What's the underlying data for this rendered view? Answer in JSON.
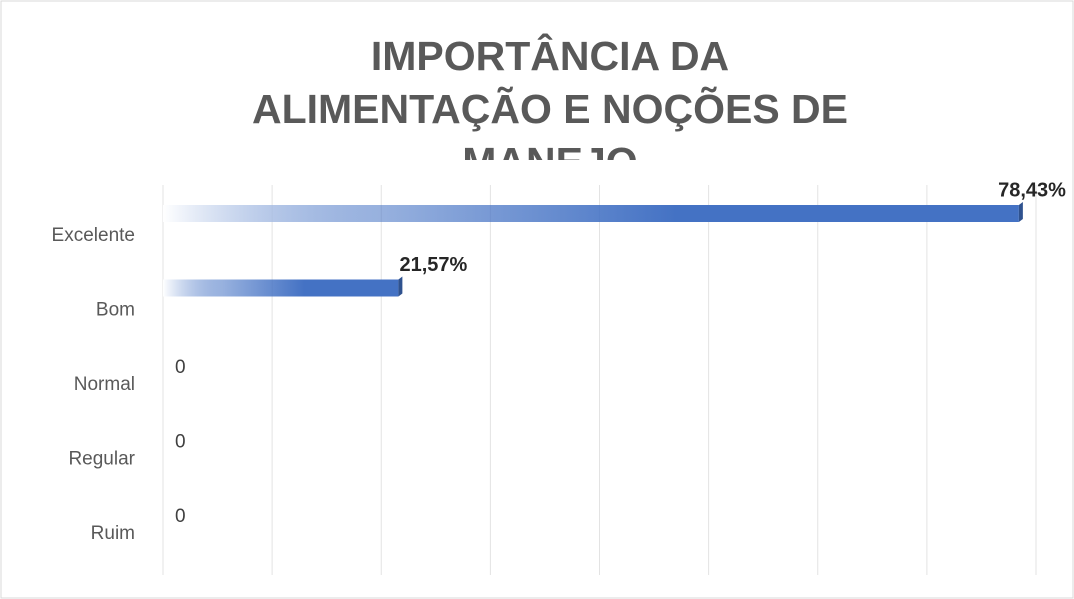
{
  "chart_data": {
    "type": "hbar",
    "title": "IMPORTÂNCIA DA ALIMENTAÇÃO E NOÇÕES DE MANEJO",
    "categories": [
      "Excelente",
      "Bom",
      "Normal",
      "Regular",
      "Ruim"
    ],
    "values": [
      78.43,
      21.57,
      0,
      0,
      0
    ],
    "value_labels": [
      "78,43%",
      "21,57%",
      "0",
      "0",
      "0"
    ],
    "color": "#4472c4",
    "xlim": [
      0,
      80
    ],
    "xticks": [
      0,
      10,
      20,
      30,
      40,
      50,
      60,
      70,
      80
    ],
    "grid": true
  }
}
